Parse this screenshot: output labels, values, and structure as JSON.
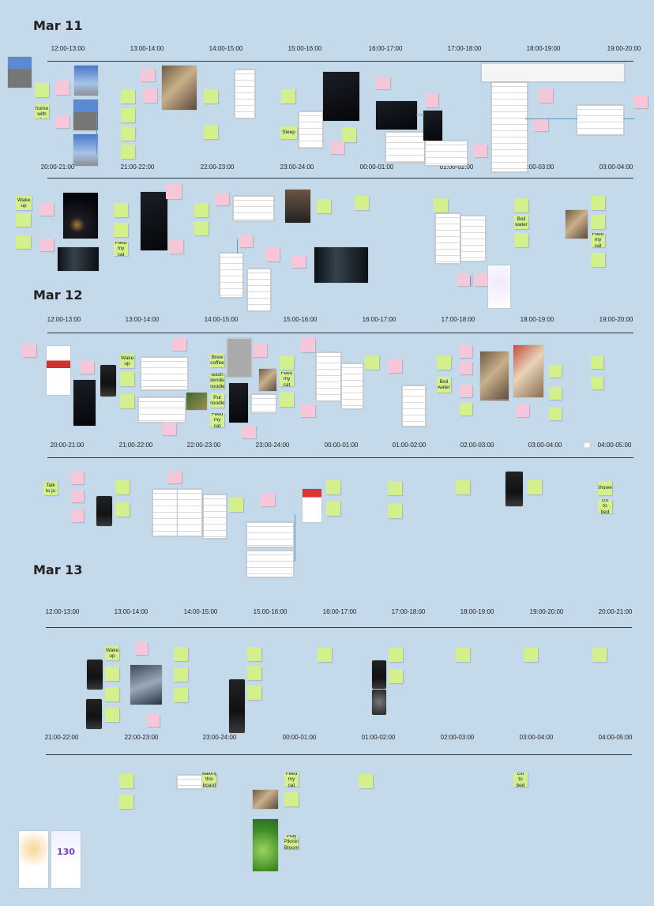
{
  "days": [
    {
      "title": "Mar 11"
    },
    {
      "title": "Mar 12"
    },
    {
      "title": "Mar 13"
    }
  ],
  "timelines": [
    [
      "12:00-13:00",
      "13:00-14:00",
      "14:00-15:00",
      "15:00-16:00",
      "16:00-17:00",
      "17:00-18:00",
      "18:00-19:00",
      "19:00-20:00"
    ],
    [
      "20:00-21:00",
      "21:00-22:00",
      "22:00-23:00",
      "23:00-24:00",
      "00:00-01:00",
      "01:00-02:00",
      "02:00-03:00",
      "03:00-04:00"
    ],
    [
      "12:00-13:00",
      "13:00-14:00",
      "14:00-15:00",
      "15:00-16:00",
      "16:00-17:00",
      "17:00-18:00",
      "18:00-19:00",
      "19:00-20:00"
    ],
    [
      "20:00-21:00",
      "21:00-22:00",
      "22:00-23:00",
      "23:00-24:00",
      "00:00-01:00",
      "01:00-02:00",
      "02:00-03:00",
      "03:00-04:00",
      "04:00-05:00"
    ],
    [
      "12:00-13:00",
      "13:00-14:00",
      "14:00-15:00",
      "15:00-16:00",
      "16:00-17:00",
      "17:00-18:00",
      "18:00-19:00",
      "19:00-20:00",
      "20:00-21:00"
    ],
    [
      "21:00-22:00",
      "22:00-23:00",
      "23:00-24:00",
      "00:00-01:00",
      "01:00-02:00",
      "02:00-03:00",
      "03:00-04:00",
      "04:00-05:00"
    ]
  ],
  "notes": {
    "drive_home": "Drive home with Ju",
    "sleep": "Sleep",
    "wake_up": "Wake up",
    "boil_water": "Boil water",
    "feed_cat": "Feed my cat",
    "brew_coffee": "Brew coffee",
    "wash_blender": "wash blender noodle",
    "put_noodle": "Put noodle",
    "talk_to_ju": "Talk to ju",
    "shower": "Shower",
    "go_to_bed": "Go to bed",
    "making_board": "Making this board",
    "play_pikmin": "Play Pikmin Bloom",
    "counter": "130"
  }
}
